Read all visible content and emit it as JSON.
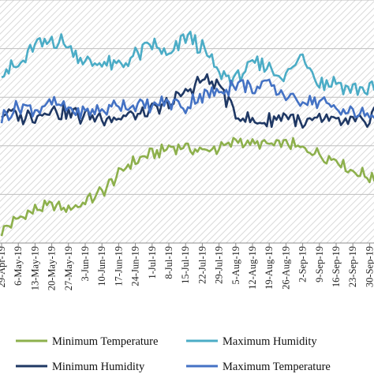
{
  "chart_data": {
    "type": "line",
    "title": "",
    "xlabel": "",
    "ylabel": "",
    "ylim": [
      0,
      100
    ],
    "grid": true,
    "legend_position": "bottom",
    "x_tick_labels": [
      "29-Apr-19",
      "6-May-19",
      "13-May-19",
      "20-May-19",
      "27-May-19",
      "3-Jun-19",
      "10-Jun-19",
      "17-Jun-19",
      "24-Jun-19",
      "1-Jul-19",
      "8-Jul-19",
      "15-Jul-19",
      "22-Jul-19",
      "29-Jul-19",
      "5-Aug-19",
      "12-Aug-19",
      "19-Aug-19",
      "26-Aug-19",
      "2-Sep-19",
      "9-Sep-19",
      "16-Sep-19",
      "23-Sep-19",
      "30-Sep-19"
    ],
    "x_range": [
      "2019-04-29",
      "2019-10-02"
    ],
    "series": [
      {
        "name": "Minimum Temperature",
        "color": "#8db04c",
        "keypoints": [
          [
            "2019-04-29",
            5
          ],
          [
            "2019-05-06",
            10
          ],
          [
            "2019-05-13",
            14
          ],
          [
            "2019-05-20",
            15
          ],
          [
            "2019-05-27",
            14
          ],
          [
            "2019-06-03",
            17
          ],
          [
            "2019-06-10",
            21
          ],
          [
            "2019-06-17",
            28
          ],
          [
            "2019-06-24",
            34
          ],
          [
            "2019-07-01",
            37
          ],
          [
            "2019-07-08",
            39
          ],
          [
            "2019-07-15",
            40
          ],
          [
            "2019-07-22",
            38
          ],
          [
            "2019-07-29",
            39
          ],
          [
            "2019-08-05",
            42
          ],
          [
            "2019-08-12",
            41
          ],
          [
            "2019-08-19",
            40
          ],
          [
            "2019-08-26",
            41
          ],
          [
            "2019-09-02",
            39
          ],
          [
            "2019-09-09",
            37
          ],
          [
            "2019-09-16",
            34
          ],
          [
            "2019-09-23",
            30
          ],
          [
            "2019-09-30",
            27
          ],
          [
            "2019-10-02",
            27
          ]
        ]
      },
      {
        "name": "Maximum Humidity",
        "color": "#4bacc6",
        "keypoints": [
          [
            "2019-04-29",
            71
          ],
          [
            "2019-05-06",
            73
          ],
          [
            "2019-05-13",
            81
          ],
          [
            "2019-05-20",
            84
          ],
          [
            "2019-05-27",
            81
          ],
          [
            "2019-06-03",
            74
          ],
          [
            "2019-06-10",
            75
          ],
          [
            "2019-06-17",
            73
          ],
          [
            "2019-06-24",
            77
          ],
          [
            "2019-07-01",
            82
          ],
          [
            "2019-07-08",
            76
          ],
          [
            "2019-07-15",
            85
          ],
          [
            "2019-07-22",
            80
          ],
          [
            "2019-07-29",
            70
          ],
          [
            "2019-08-05",
            68
          ],
          [
            "2019-08-12",
            73
          ],
          [
            "2019-08-19",
            72
          ],
          [
            "2019-08-26",
            68
          ],
          [
            "2019-09-02",
            77
          ],
          [
            "2019-09-09",
            66
          ],
          [
            "2019-09-16",
            66
          ],
          [
            "2019-09-23",
            64
          ],
          [
            "2019-09-30",
            63
          ],
          [
            "2019-10-02",
            63
          ]
        ]
      },
      {
        "name": "Minimum Humidity",
        "color": "#1f3864",
        "keypoints": [
          [
            "2019-04-29",
            54
          ],
          [
            "2019-05-06",
            52
          ],
          [
            "2019-05-13",
            53
          ],
          [
            "2019-05-20",
            55
          ],
          [
            "2019-05-27",
            53
          ],
          [
            "2019-06-03",
            52
          ],
          [
            "2019-06-10",
            52
          ],
          [
            "2019-06-17",
            51
          ],
          [
            "2019-06-24",
            53
          ],
          [
            "2019-07-01",
            54
          ],
          [
            "2019-07-08",
            57
          ],
          [
            "2019-07-15",
            62
          ],
          [
            "2019-07-22",
            67
          ],
          [
            "2019-07-29",
            65
          ],
          [
            "2019-08-05",
            53
          ],
          [
            "2019-08-12",
            49
          ],
          [
            "2019-08-19",
            50
          ],
          [
            "2019-08-26",
            54
          ],
          [
            "2019-09-02",
            48
          ],
          [
            "2019-09-09",
            51
          ],
          [
            "2019-09-16",
            50
          ],
          [
            "2019-09-23",
            49
          ],
          [
            "2019-09-30",
            50
          ],
          [
            "2019-10-02",
            56
          ]
        ]
      },
      {
        "name": "Maximum Temperature",
        "color": "#4472c4",
        "keypoints": [
          [
            "2019-04-29",
            52
          ],
          [
            "2019-05-06",
            57
          ],
          [
            "2019-05-13",
            55
          ],
          [
            "2019-05-20",
            57
          ],
          [
            "2019-05-27",
            55
          ],
          [
            "2019-06-03",
            53
          ],
          [
            "2019-06-10",
            55
          ],
          [
            "2019-06-17",
            57
          ],
          [
            "2019-06-24",
            57
          ],
          [
            "2019-07-01",
            56
          ],
          [
            "2019-07-08",
            58
          ],
          [
            "2019-07-15",
            56
          ],
          [
            "2019-07-22",
            61
          ],
          [
            "2019-07-29",
            62
          ],
          [
            "2019-08-05",
            66
          ],
          [
            "2019-08-12",
            64
          ],
          [
            "2019-08-19",
            65
          ],
          [
            "2019-08-26",
            60
          ],
          [
            "2019-09-02",
            59
          ],
          [
            "2019-09-09",
            58
          ],
          [
            "2019-09-16",
            56
          ],
          [
            "2019-09-23",
            53
          ],
          [
            "2019-09-30",
            52
          ],
          [
            "2019-10-02",
            52
          ]
        ]
      }
    ]
  }
}
